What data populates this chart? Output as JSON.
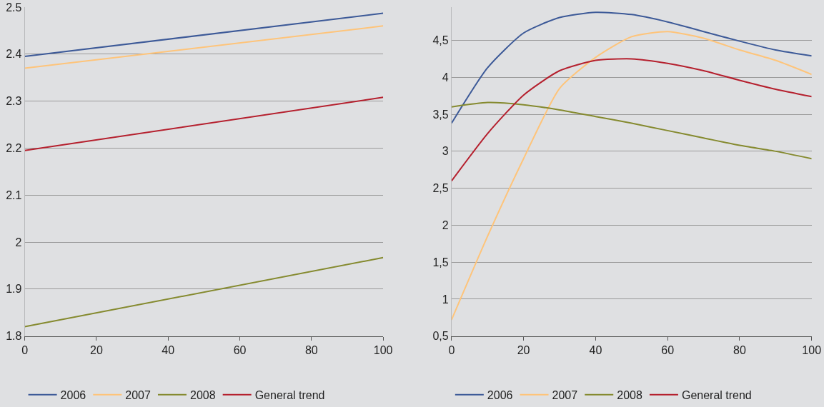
{
  "chart_data": [
    {
      "type": "line",
      "x": [
        0,
        100
      ],
      "xlim": [
        0,
        100
      ],
      "xticks": [
        0,
        20,
        40,
        60,
        80,
        100
      ],
      "ylim": [
        1.8,
        2.5
      ],
      "yticks": [
        1.8,
        1.9,
        2,
        2.1,
        2.2,
        2.3,
        2.4,
        2.5
      ],
      "grid": "y",
      "legend": "bottom",
      "marker": "none",
      "line_style": "solid",
      "series": [
        {
          "name": "2006",
          "color": "#3d5a98",
          "values": [
            2.395,
            2.487
          ]
        },
        {
          "name": "2007",
          "color": "#fec47a",
          "values": [
            2.37,
            2.46
          ]
        },
        {
          "name": "2008",
          "color": "#858a2f",
          "values": [
            1.82,
            1.967
          ]
        },
        {
          "name": "General trend",
          "color": "#b5202e",
          "values": [
            2.195,
            2.308
          ]
        }
      ]
    },
    {
      "type": "line",
      "x": [
        0,
        10,
        20,
        30,
        40,
        50,
        60,
        70,
        80,
        90,
        100
      ],
      "xlim": [
        0,
        100
      ],
      "xticks": [
        0,
        20,
        40,
        60,
        80,
        100
      ],
      "ylim": [
        0.5,
        4.95
      ],
      "yticks": [
        {
          "value": 0.5,
          "label": "0,5"
        },
        1,
        {
          "value": 1.5,
          "label": "1,5"
        },
        2,
        {
          "value": 2.5,
          "label": "2,5"
        },
        3,
        {
          "value": 3.5,
          "label": "3,5"
        },
        4,
        {
          "value": 4.5,
          "label": "4,5"
        }
      ],
      "grid": "y",
      "legend": "bottom",
      "marker": "none",
      "line_style": "solid",
      "series": [
        {
          "name": "2006",
          "color": "#3d5a98",
          "values": [
            3.38,
            4.13,
            4.6,
            4.81,
            4.88,
            4.85,
            4.75,
            4.62,
            4.49,
            4.37,
            4.29
          ]
        },
        {
          "name": "2007",
          "color": "#fec47a",
          "values": [
            0.72,
            1.85,
            2.9,
            3.85,
            4.27,
            4.55,
            4.62,
            4.53,
            4.37,
            4.23,
            4.04
          ]
        },
        {
          "name": "2008",
          "color": "#858a2f",
          "values": [
            3.6,
            3.66,
            3.63,
            3.56,
            3.47,
            3.38,
            3.28,
            3.18,
            3.08,
            3.0,
            2.9
          ]
        },
        {
          "name": "General trend",
          "color": "#b5202e",
          "values": [
            2.6,
            3.24,
            3.76,
            4.09,
            4.23,
            4.25,
            4.19,
            4.09,
            3.96,
            3.84,
            3.74
          ]
        }
      ]
    }
  ]
}
